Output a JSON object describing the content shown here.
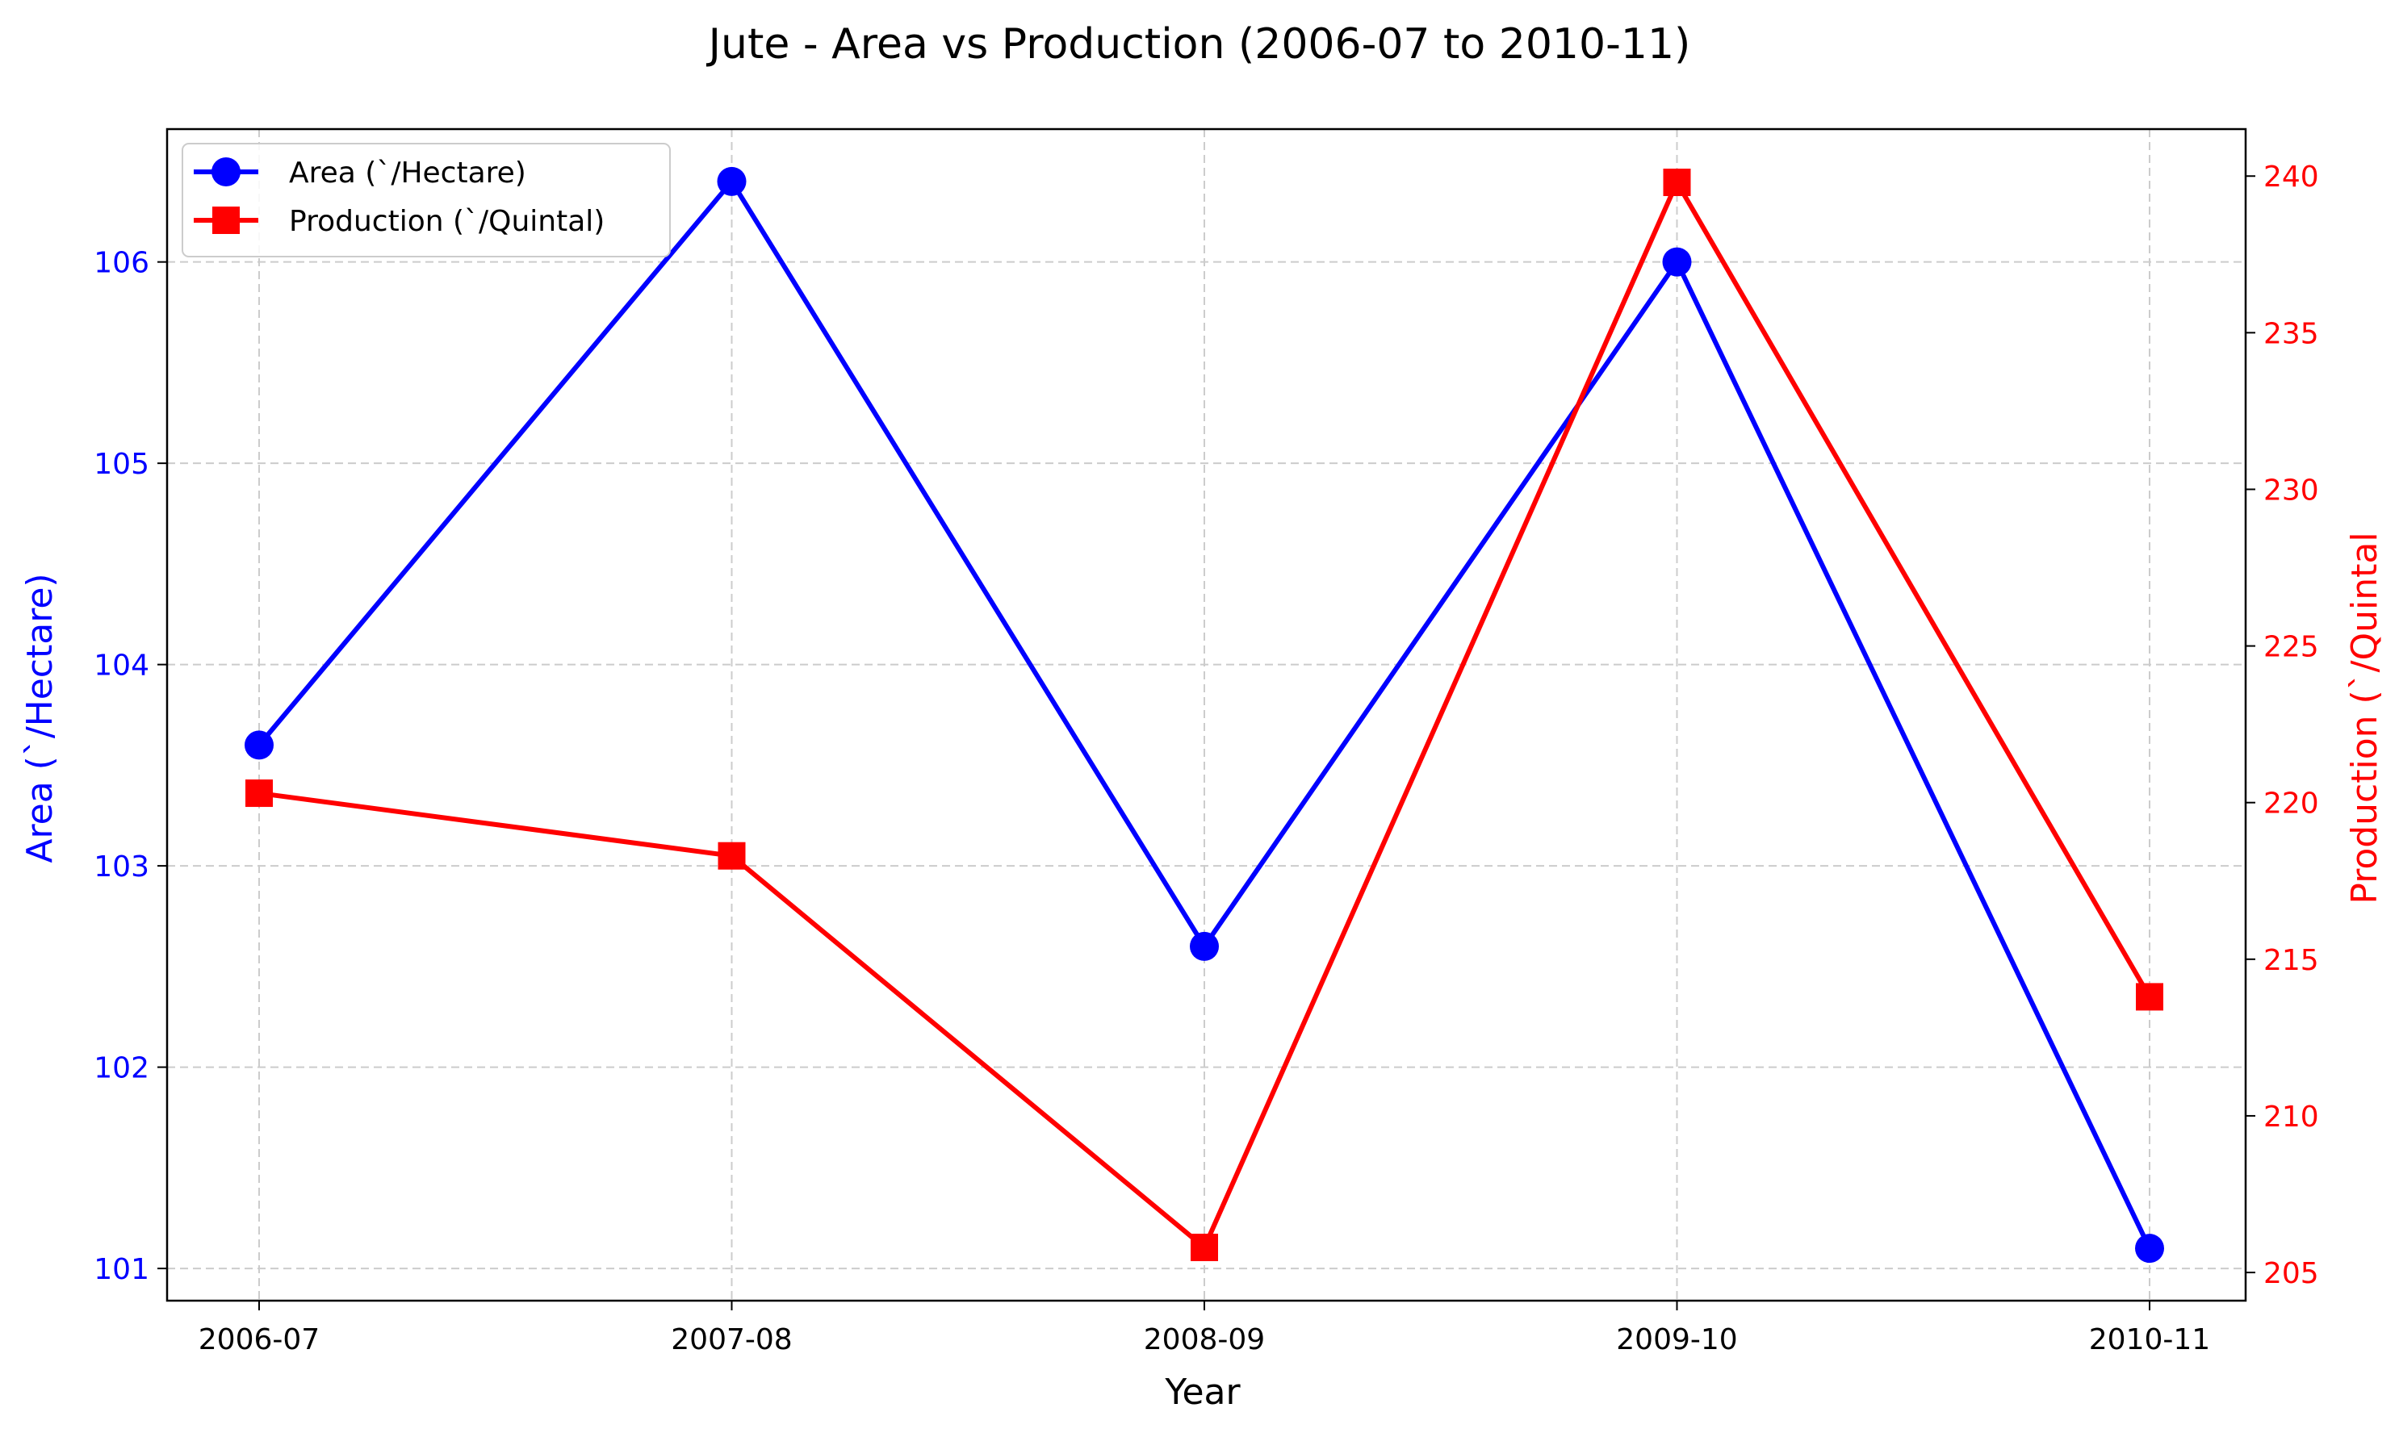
{
  "chart_data": {
    "type": "line",
    "title": "Jute - Area vs Production (2006-07 to 2010-11)",
    "xlabel": "Year",
    "ylabel_left": "Area (`/Hectare)",
    "ylabel_right": "Production (`/Quintal",
    "categories": [
      "2006-07",
      "2007-08",
      "2008-09",
      "2009-10",
      "2010-11"
    ],
    "series": [
      {
        "name": "Area (`/Hectare)",
        "axis": "left",
        "color": "#0000ff",
        "marker": "circle",
        "values": [
          103.6,
          106.4,
          102.6,
          106.0,
          101.1
        ]
      },
      {
        "name": "Production (`/Quintal)",
        "axis": "right",
        "color": "#ff0000",
        "marker": "square",
        "values": [
          220.3,
          218.3,
          205.8,
          239.8,
          213.8
        ]
      }
    ],
    "ylim_left": [
      100.84,
      106.66
    ],
    "yticks_left": [
      101,
      102,
      103,
      104,
      105,
      106
    ],
    "ylim_right": [
      204.1,
      241.5
    ],
    "yticks_right": [
      205,
      210,
      215,
      220,
      225,
      230,
      235,
      240
    ],
    "grid": true,
    "legend_position": "top-left"
  }
}
